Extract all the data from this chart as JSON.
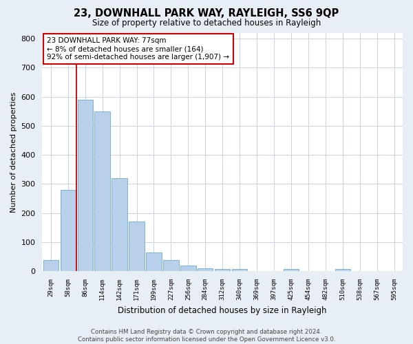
{
  "title": "23, DOWNHALL PARK WAY, RAYLEIGH, SS6 9QP",
  "subtitle": "Size of property relative to detached houses in Rayleigh",
  "xlabel": "Distribution of detached houses by size in Rayleigh",
  "ylabel": "Number of detached properties",
  "bar_labels": [
    "29sqm",
    "58sqm",
    "86sqm",
    "114sqm",
    "142sqm",
    "171sqm",
    "199sqm",
    "227sqm",
    "256sqm",
    "284sqm",
    "312sqm",
    "340sqm",
    "369sqm",
    "397sqm",
    "425sqm",
    "454sqm",
    "482sqm",
    "510sqm",
    "538sqm",
    "567sqm",
    "595sqm"
  ],
  "bar_values": [
    38,
    280,
    590,
    550,
    320,
    170,
    65,
    38,
    20,
    10,
    8,
    8,
    0,
    0,
    8,
    0,
    0,
    8,
    0,
    0,
    0
  ],
  "bar_color": "#b8d0ea",
  "bar_edge_color": "#6aaad4",
  "vline_color": "#cc0000",
  "vline_x": 1.5,
  "annotation_text": "23 DOWNHALL PARK WAY: 77sqm\n← 8% of detached houses are smaller (164)\n92% of semi-detached houses are larger (1,907) →",
  "annotation_box_color": "#ffffff",
  "annotation_box_edge": "#cc0000",
  "ylim": [
    0,
    820
  ],
  "yticks": [
    0,
    100,
    200,
    300,
    400,
    500,
    600,
    700,
    800
  ],
  "footer_line1": "Contains HM Land Registry data © Crown copyright and database right 2024.",
  "footer_line2": "Contains public sector information licensed under the Open Government Licence v3.0.",
  "bg_color": "#e8eef5",
  "plot_bg_color": "#ffffff",
  "grid_color": "#c8d4e6"
}
